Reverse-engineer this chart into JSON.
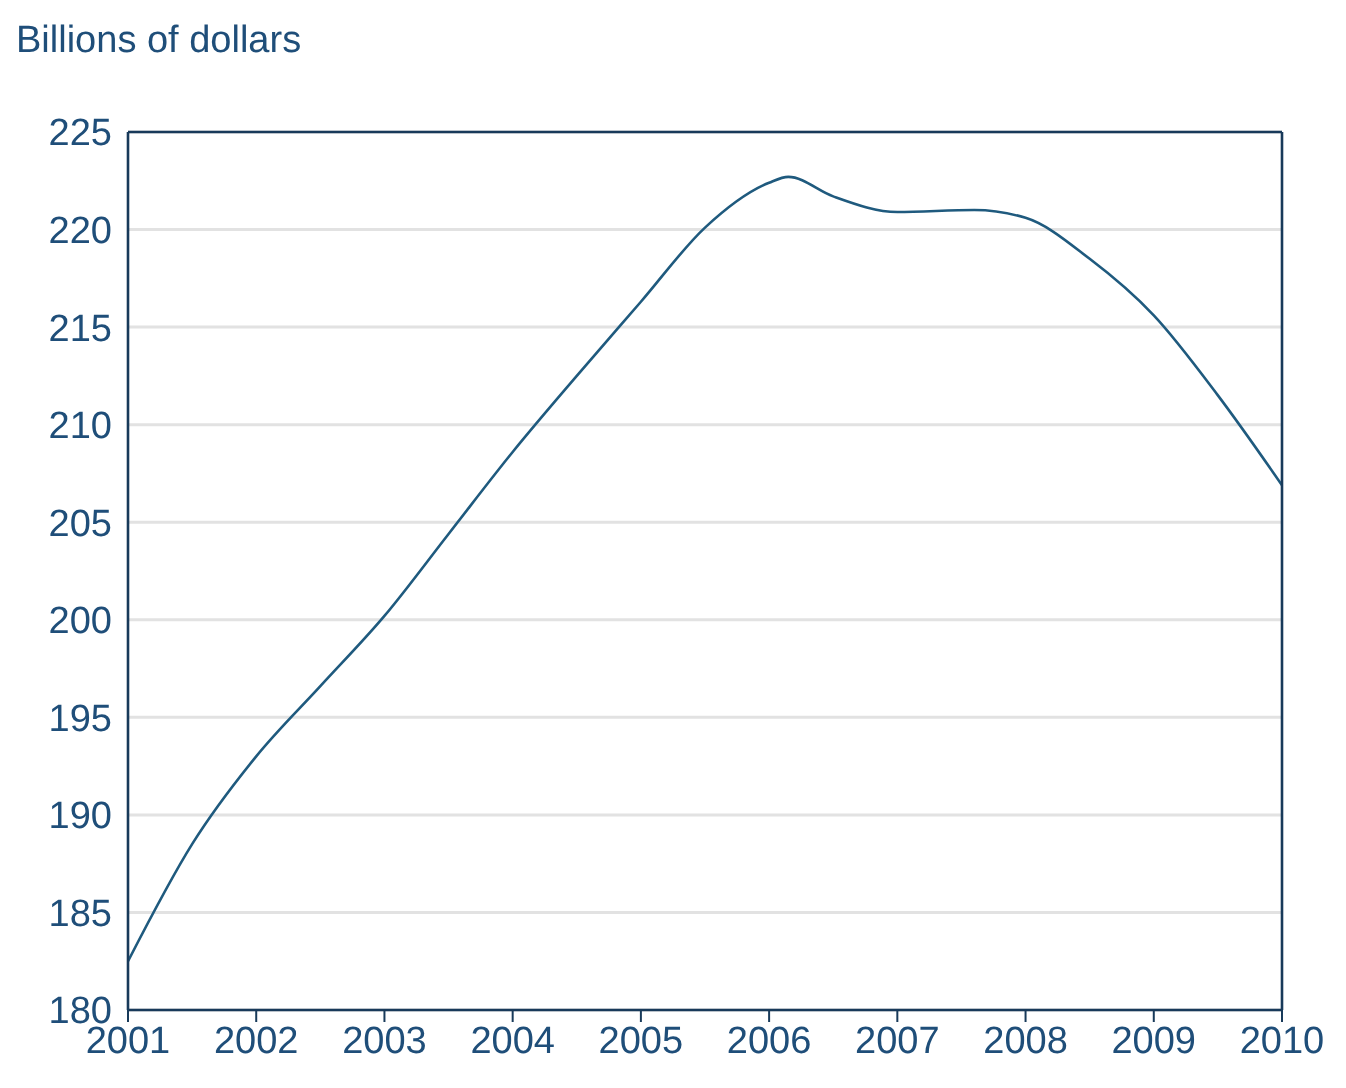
{
  "chart_data": {
    "type": "line",
    "ylabel": "Billions of dollars",
    "x": [
      2001,
      2001.5,
      2002,
      2002.5,
      2003,
      2003.5,
      2004,
      2004.5,
      2005,
      2005.5,
      2006,
      2006.15,
      2006.5,
      2007,
      2007.6,
      2008,
      2008.5,
      2009,
      2009.5,
      2010
    ],
    "series": [
      {
        "color": "#1f5a7e",
        "values": [
          182.5,
          188.5,
          193.0,
          196.6,
          200.2,
          204.4,
          208.6,
          212.5,
          216.3,
          220.1,
          222.4,
          222.7,
          221.7,
          220.9,
          221.0,
          220.6,
          218.5,
          215.6,
          211.5,
          206.9
        ]
      }
    ],
    "xlim": [
      2001,
      2010
    ],
    "xticks": [
      2001,
      2002,
      2003,
      2004,
      2005,
      2006,
      2007,
      2008,
      2009,
      2010
    ],
    "ylim": [
      180,
      225
    ],
    "yticks": [
      180,
      185,
      190,
      195,
      200,
      205,
      210,
      215,
      220,
      225
    ],
    "grid": "y",
    "marker": "none",
    "line_style": "solid"
  }
}
